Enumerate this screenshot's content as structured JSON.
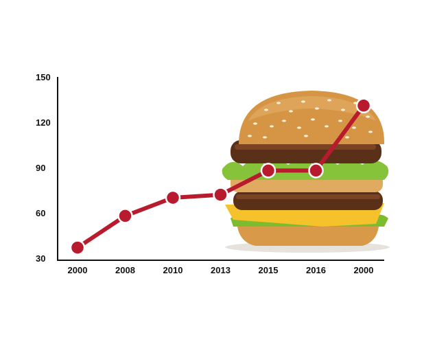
{
  "chart_data": {
    "type": "line",
    "categories": [
      "2000",
      "2008",
      "2010",
      "2013",
      "2015",
      "2016",
      "2000"
    ],
    "values": [
      37,
      58,
      70,
      72,
      88,
      88,
      131
    ],
    "yticks": [
      "150",
      "120",
      "90",
      "60",
      "30"
    ],
    "ylim": [
      30,
      150
    ],
    "grid": false,
    "title": "",
    "xlabel": "",
    "ylabel": ""
  },
  "colors": {
    "line": "#b81b2e",
    "marker_stroke": "#ffffff",
    "axis": "#111111"
  },
  "icons": {
    "background_image": "burger-illustration"
  }
}
